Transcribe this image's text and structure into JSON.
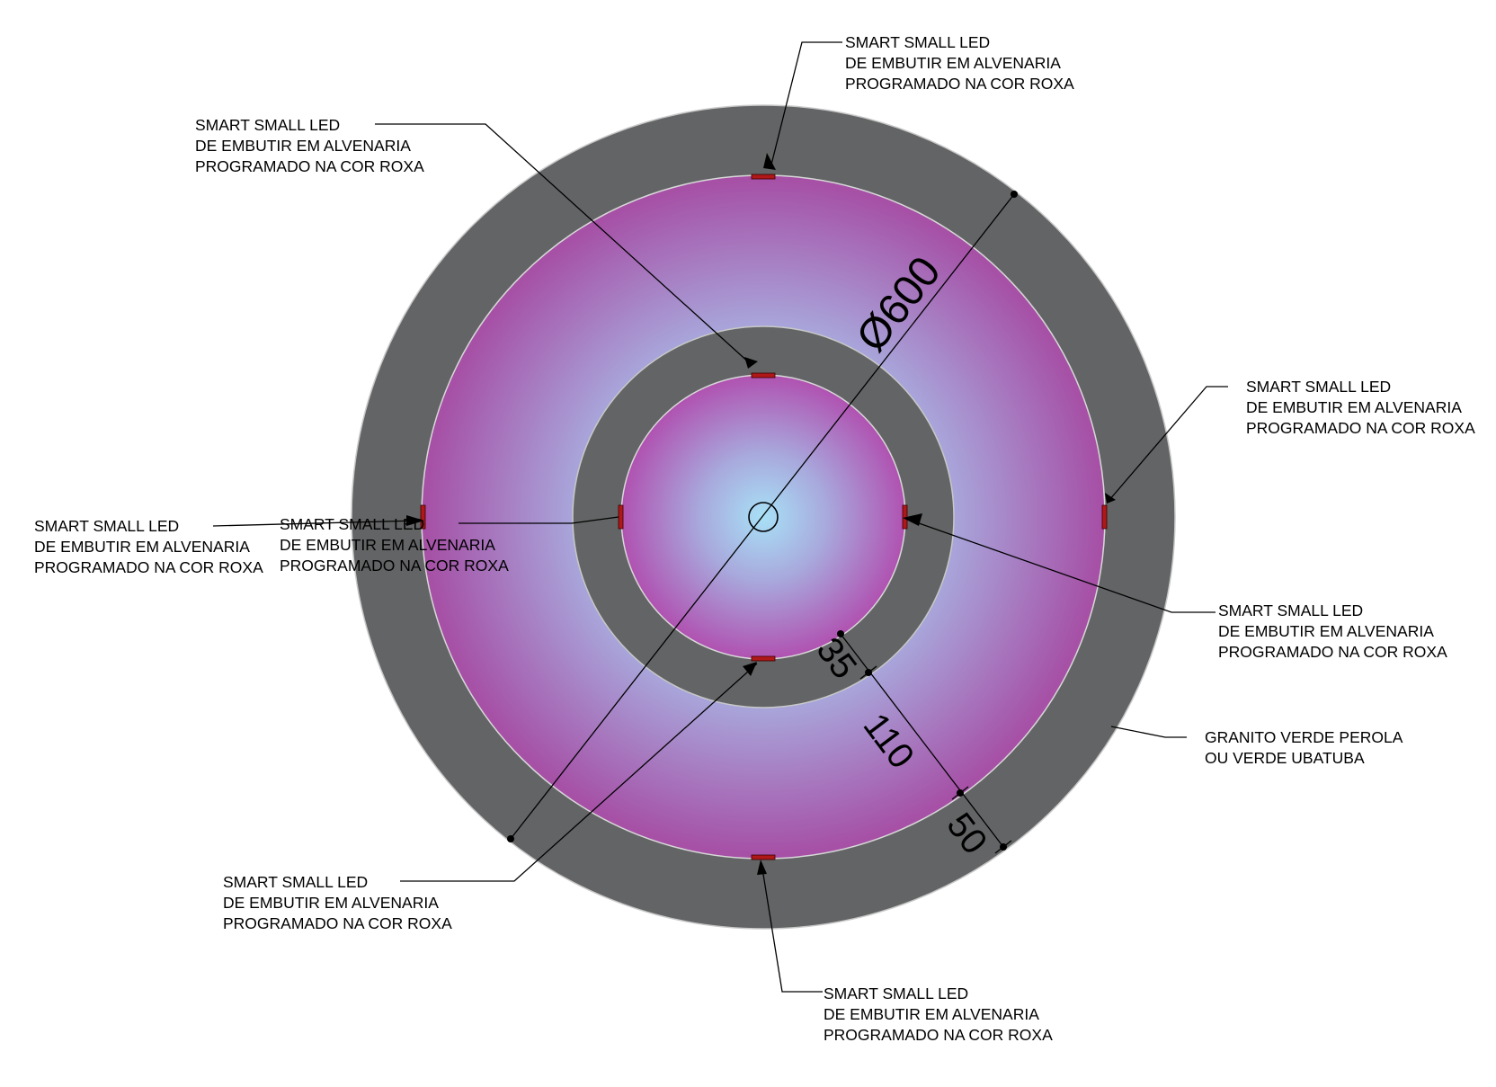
{
  "labels": {
    "led": [
      "SMART SMALL LED",
      "DE EMBUTIR EM ALVENARIA",
      "PROGRAMADO NA COR ROXA"
    ],
    "granite": [
      "GRANITO VERDE PEROLA",
      "OU VERDE UBATUBA"
    ]
  },
  "dimensions": {
    "diameter": "Ø600",
    "d35": "35",
    "d110": "110",
    "d50": "50"
  },
  "colors": {
    "granite": "#636465",
    "ring_edge": "#c8c8c8",
    "glow_center": "#a8dcf4",
    "glow_mid": "#a8a8dc",
    "glow_edge": "#a650a6",
    "led": "#b01818"
  }
}
